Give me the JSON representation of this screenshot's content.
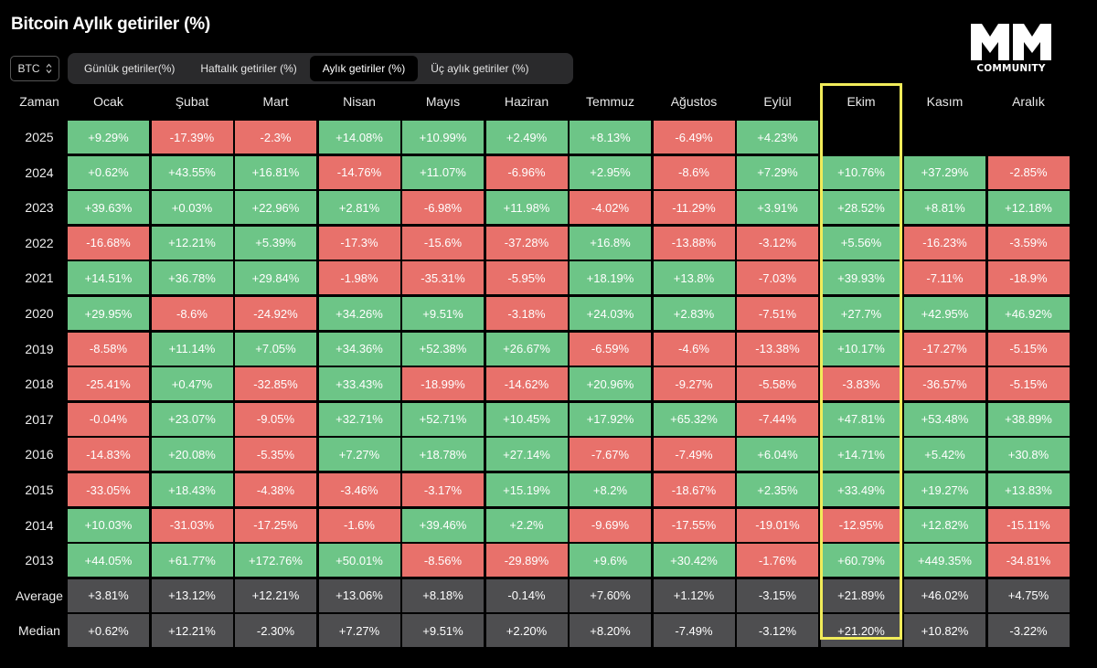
{
  "title": "Bitcoin Aylık getiriler (%)",
  "logo": {
    "text": "COMMUNITY"
  },
  "selector": {
    "value": "BTC"
  },
  "tabs": [
    {
      "label": "Günlük getiriler(%)",
      "active": false
    },
    {
      "label": "Haftalık getiriler (%)",
      "active": false
    },
    {
      "label": "Aylık getiriler (%)",
      "active": true
    },
    {
      "label": "Üç aylık getiriler (%)",
      "active": false
    }
  ],
  "colors": {
    "positive": "#6dc587",
    "negative": "#e8716b",
    "summary": "#4e4e50",
    "highlight": "#f1ec5a"
  },
  "chart_data": {
    "type": "table",
    "title": "Bitcoin Aylık getiriler (%)",
    "corner_label": "Zaman",
    "columns": [
      "Ocak",
      "Şubat",
      "Mart",
      "Nisan",
      "Mayıs",
      "Haziran",
      "Temmuz",
      "Ağustos",
      "Eylül",
      "Ekim",
      "Kasım",
      "Aralık"
    ],
    "highlighted_column": "Ekim",
    "rows": [
      {
        "label": "2025",
        "values": [
          "+9.29%",
          "-17.39%",
          "-2.3%",
          "+14.08%",
          "+10.99%",
          "+2.49%",
          "+8.13%",
          "-6.49%",
          "+4.23%",
          "",
          "",
          ""
        ]
      },
      {
        "label": "2024",
        "values": [
          "+0.62%",
          "+43.55%",
          "+16.81%",
          "-14.76%",
          "+11.07%",
          "-6.96%",
          "+2.95%",
          "-8.6%",
          "+7.29%",
          "+10.76%",
          "+37.29%",
          "-2.85%"
        ]
      },
      {
        "label": "2023",
        "values": [
          "+39.63%",
          "+0.03%",
          "+22.96%",
          "+2.81%",
          "-6.98%",
          "+11.98%",
          "-4.02%",
          "-11.29%",
          "+3.91%",
          "+28.52%",
          "+8.81%",
          "+12.18%"
        ]
      },
      {
        "label": "2022",
        "values": [
          "-16.68%",
          "+12.21%",
          "+5.39%",
          "-17.3%",
          "-15.6%",
          "-37.28%",
          "+16.8%",
          "-13.88%",
          "-3.12%",
          "+5.56%",
          "-16.23%",
          "-3.59%"
        ]
      },
      {
        "label": "2021",
        "values": [
          "+14.51%",
          "+36.78%",
          "+29.84%",
          "-1.98%",
          "-35.31%",
          "-5.95%",
          "+18.19%",
          "+13.8%",
          "-7.03%",
          "+39.93%",
          "-7.11%",
          "-18.9%"
        ]
      },
      {
        "label": "2020",
        "values": [
          "+29.95%",
          "-8.6%",
          "-24.92%",
          "+34.26%",
          "+9.51%",
          "-3.18%",
          "+24.03%",
          "+2.83%",
          "-7.51%",
          "+27.7%",
          "+42.95%",
          "+46.92%"
        ]
      },
      {
        "label": "2019",
        "values": [
          "-8.58%",
          "+11.14%",
          "+7.05%",
          "+34.36%",
          "+52.38%",
          "+26.67%",
          "-6.59%",
          "-4.6%",
          "-13.38%",
          "+10.17%",
          "-17.27%",
          "-5.15%"
        ]
      },
      {
        "label": "2018",
        "values": [
          "-25.41%",
          "+0.47%",
          "-32.85%",
          "+33.43%",
          "-18.99%",
          "-14.62%",
          "+20.96%",
          "-9.27%",
          "-5.58%",
          "-3.83%",
          "-36.57%",
          "-5.15%"
        ]
      },
      {
        "label": "2017",
        "values": [
          "-0.04%",
          "+23.07%",
          "-9.05%",
          "+32.71%",
          "+52.71%",
          "+10.45%",
          "+17.92%",
          "+65.32%",
          "-7.44%",
          "+47.81%",
          "+53.48%",
          "+38.89%"
        ]
      },
      {
        "label": "2016",
        "values": [
          "-14.83%",
          "+20.08%",
          "-5.35%",
          "+7.27%",
          "+18.78%",
          "+27.14%",
          "-7.67%",
          "-7.49%",
          "+6.04%",
          "+14.71%",
          "+5.42%",
          "+30.8%"
        ]
      },
      {
        "label": "2015",
        "values": [
          "-33.05%",
          "+18.43%",
          "-4.38%",
          "-3.46%",
          "-3.17%",
          "+15.19%",
          "+8.2%",
          "-18.67%",
          "+2.35%",
          "+33.49%",
          "+19.27%",
          "+13.83%"
        ]
      },
      {
        "label": "2014",
        "values": [
          "+10.03%",
          "-31.03%",
          "-17.25%",
          "-1.6%",
          "+39.46%",
          "+2.2%",
          "-9.69%",
          "-17.55%",
          "-19.01%",
          "-12.95%",
          "+12.82%",
          "-15.11%"
        ]
      },
      {
        "label": "2013",
        "values": [
          "+44.05%",
          "+61.77%",
          "+172.76%",
          "+50.01%",
          "-8.56%",
          "-29.89%",
          "+9.6%",
          "+30.42%",
          "-1.76%",
          "+60.79%",
          "+449.35%",
          "-34.81%"
        ]
      }
    ],
    "summary": [
      {
        "label": "Average",
        "values": [
          "+3.81%",
          "+13.12%",
          "+12.21%",
          "+13.06%",
          "+8.18%",
          "-0.14%",
          "+7.60%",
          "+1.12%",
          "-3.15%",
          "+21.89%",
          "+46.02%",
          "+4.75%"
        ]
      },
      {
        "label": "Median",
        "values": [
          "+0.62%",
          "+12.21%",
          "-2.30%",
          "+7.27%",
          "+9.51%",
          "+2.20%",
          "+8.20%",
          "-7.49%",
          "-3.12%",
          "+21.20%",
          "+10.82%",
          "-3.22%"
        ]
      }
    ]
  }
}
